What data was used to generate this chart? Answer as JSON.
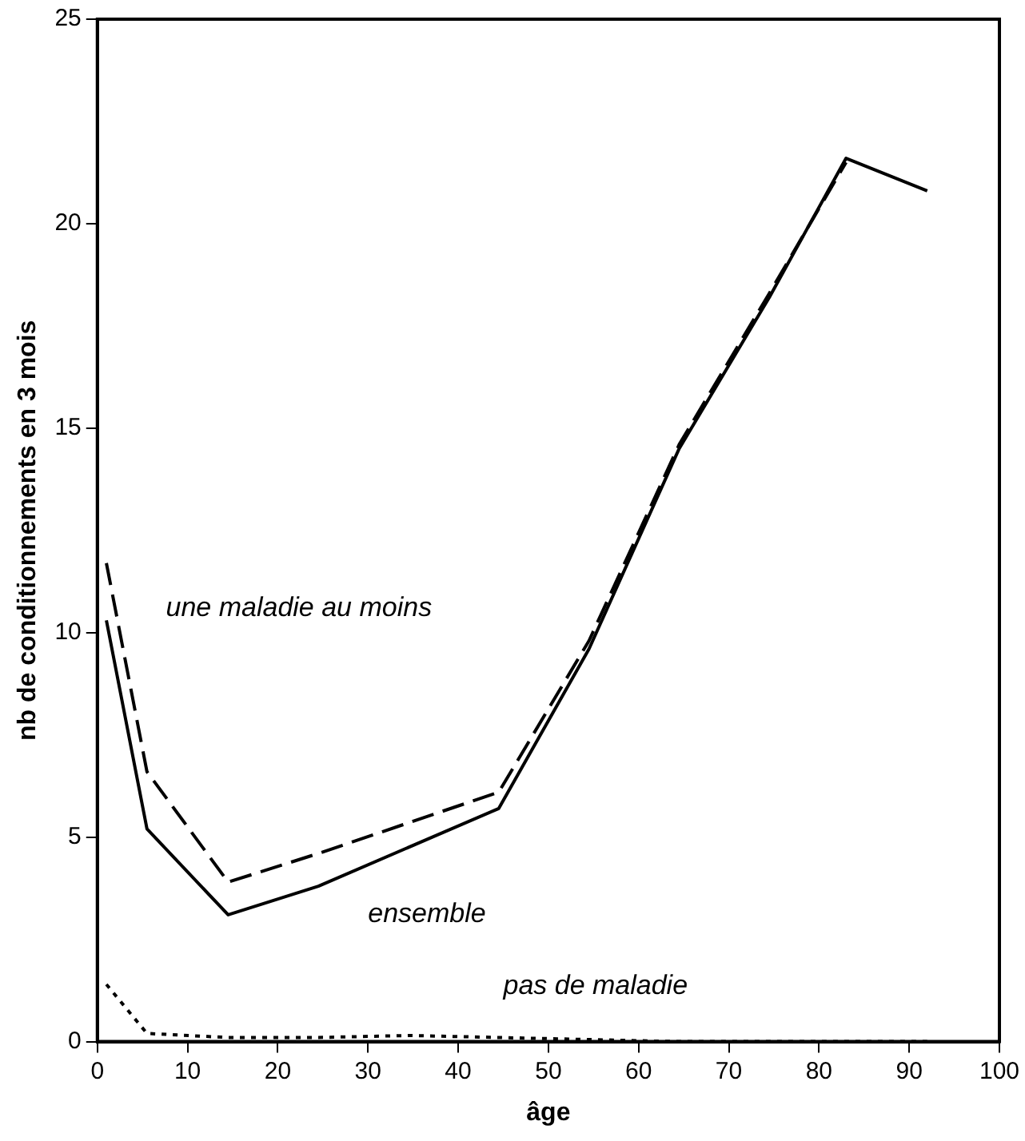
{
  "chart_data": {
    "type": "line",
    "xlabel": "âge",
    "ylabel": "nb de conditionnements en 3 mois",
    "xlim": [
      0,
      100
    ],
    "xticks": [
      0,
      10,
      20,
      30,
      40,
      50,
      60,
      70,
      80,
      90,
      100
    ],
    "ylim": [
      0,
      25
    ],
    "yticks": [
      0,
      5,
      10,
      15,
      20,
      25
    ],
    "grid": false,
    "legend": false,
    "marker": "none",
    "series": [
      {
        "name": "ensemble",
        "x": [
          1,
          5.5,
          14.5,
          24.5,
          44.5,
          54.5,
          64.5,
          74.5,
          83,
          92
        ],
        "values": [
          10.3,
          5.2,
          3.1,
          3.8,
          5.7,
          9.6,
          14.5,
          18.2,
          21.6,
          20.8
        ],
        "color": "#000000",
        "line_style": "solid"
      },
      {
        "name": "une maladie au moins",
        "x": [
          1,
          5.5,
          14.5,
          24.5,
          44.5,
          54.5,
          64.5,
          74.5,
          83
        ],
        "values": [
          11.7,
          6.6,
          3.9,
          4.6,
          6.1,
          9.8,
          14.6,
          18.3,
          21.5
        ],
        "color": "#000000",
        "line_style": "dashed"
      },
      {
        "name": "pas de maladie",
        "x": [
          1,
          5.5,
          14.5,
          24.5,
          34.5,
          44.5,
          54.5,
          64.5,
          74.5,
          83,
          92
        ],
        "values": [
          1.4,
          0.2,
          0.1,
          0.1,
          0.15,
          0.1,
          0.05,
          0,
          0,
          0,
          0
        ],
        "color": "#000000",
        "line_style": "dotted"
      }
    ]
  }
}
